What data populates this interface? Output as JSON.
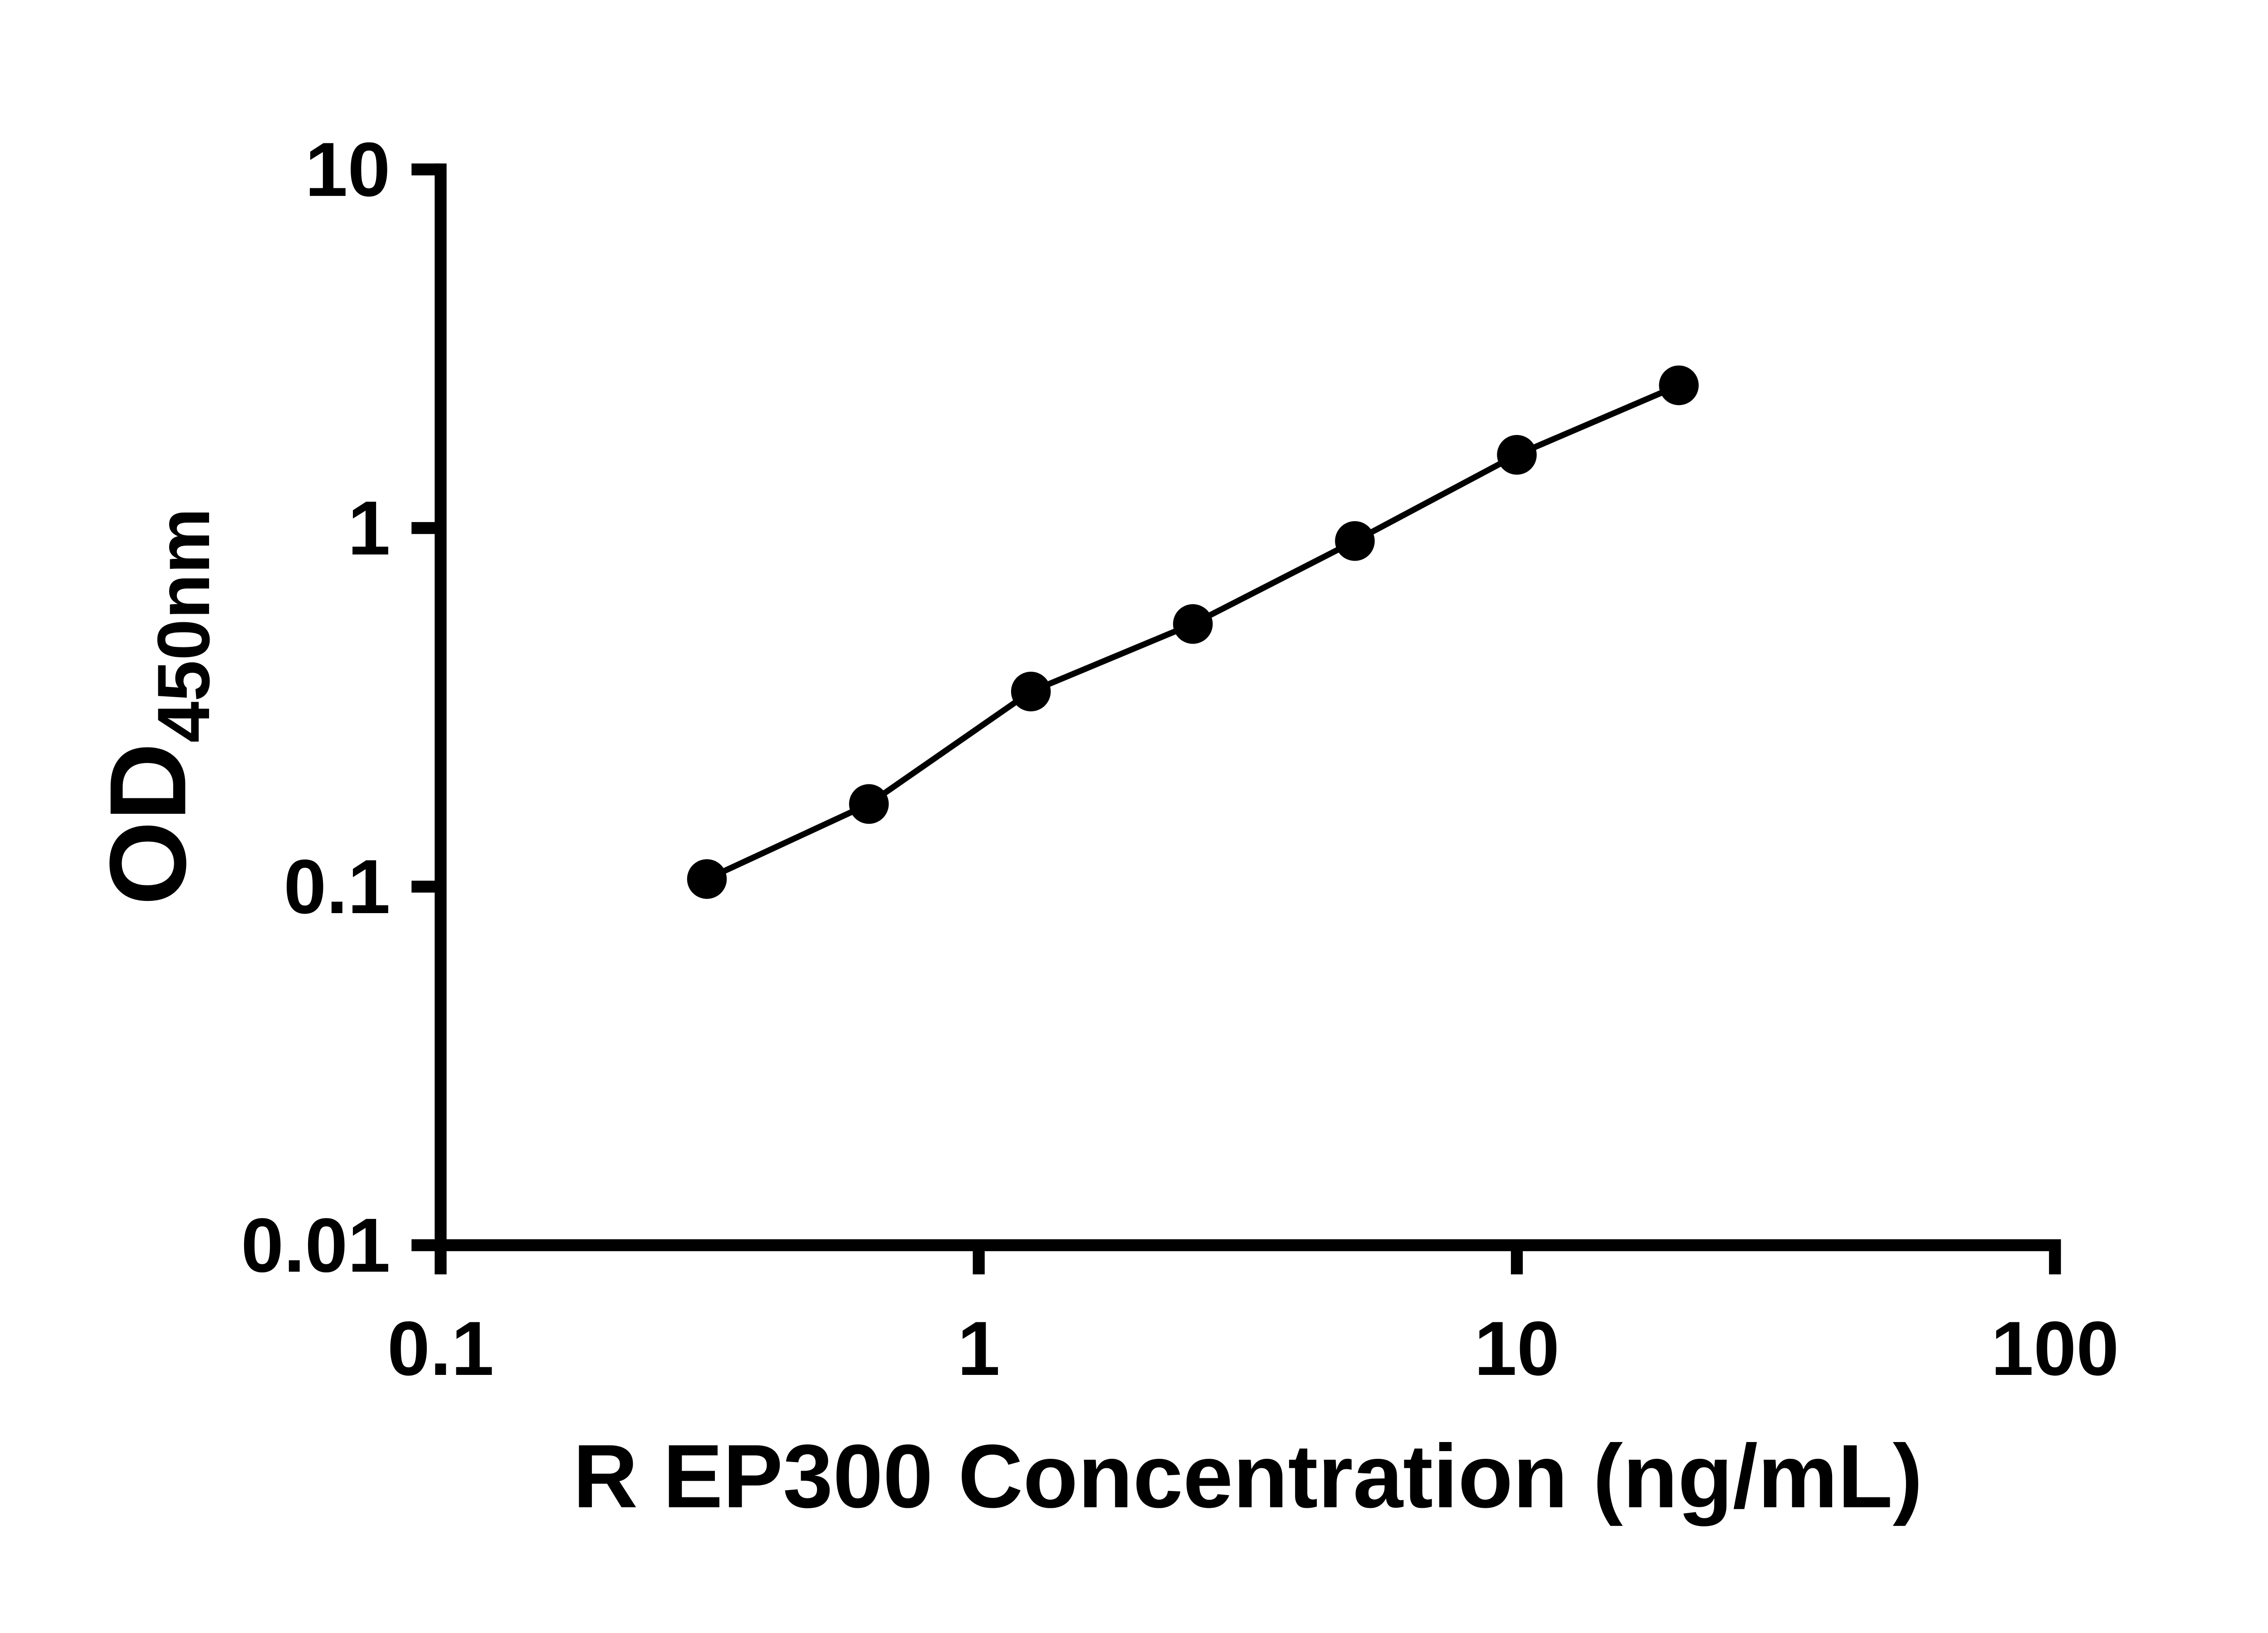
{
  "chart_data": {
    "type": "scatter",
    "title": "",
    "xlabel": "R EP300 Concentration (ng/mL)",
    "ylabel": "OD450nm",
    "ylabel_main": "OD",
    "ylabel_sub": "450nm",
    "xscale": "log",
    "yscale": "log",
    "xlim": [
      0.1,
      100
    ],
    "ylim": [
      0.01,
      10
    ],
    "x_ticks": [
      0.1,
      1,
      10,
      100
    ],
    "x_tick_labels": [
      "0.1",
      "1",
      "10",
      "100"
    ],
    "y_ticks": [
      0.01,
      0.1,
      1,
      10
    ],
    "y_tick_labels": [
      "0.01",
      "0.1",
      "1",
      "10"
    ],
    "grid": false,
    "legend": false,
    "series": [
      {
        "x": [
          0.3125,
          0.625,
          1.25,
          2.5,
          5,
          10,
          20
        ],
        "y": [
          0.105,
          0.17,
          0.35,
          0.54,
          0.92,
          1.6,
          2.5
        ],
        "marker": "filled-circle",
        "marker_color": "#000000",
        "line_color": "#000000"
      }
    ],
    "axis_color": "#000000"
  }
}
